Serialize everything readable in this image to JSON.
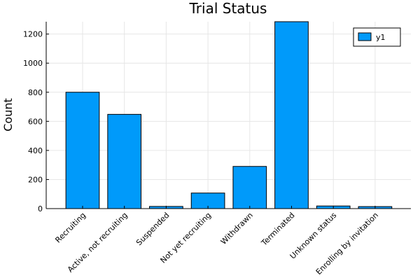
{
  "chart_data": {
    "type": "bar",
    "title": "Trial Status",
    "xlabel": "",
    "ylabel": "Count",
    "categories": [
      "Recruiting",
      "Active, not recruiting",
      "Suspended",
      "Not yet recruiting",
      "Withdrawn",
      "Terminated",
      "Unknown status",
      "Enrolling by invitation"
    ],
    "series": [
      {
        "name": "y1",
        "values": [
          800,
          648,
          15,
          107,
          290,
          1285,
          18,
          14
        ]
      }
    ],
    "ylim": [
      0,
      1285
    ],
    "yticks": [
      0,
      200,
      400,
      600,
      800,
      1000,
      1200
    ],
    "grid": true,
    "legend_position": "top-right",
    "bar_color": "#009AFA"
  }
}
